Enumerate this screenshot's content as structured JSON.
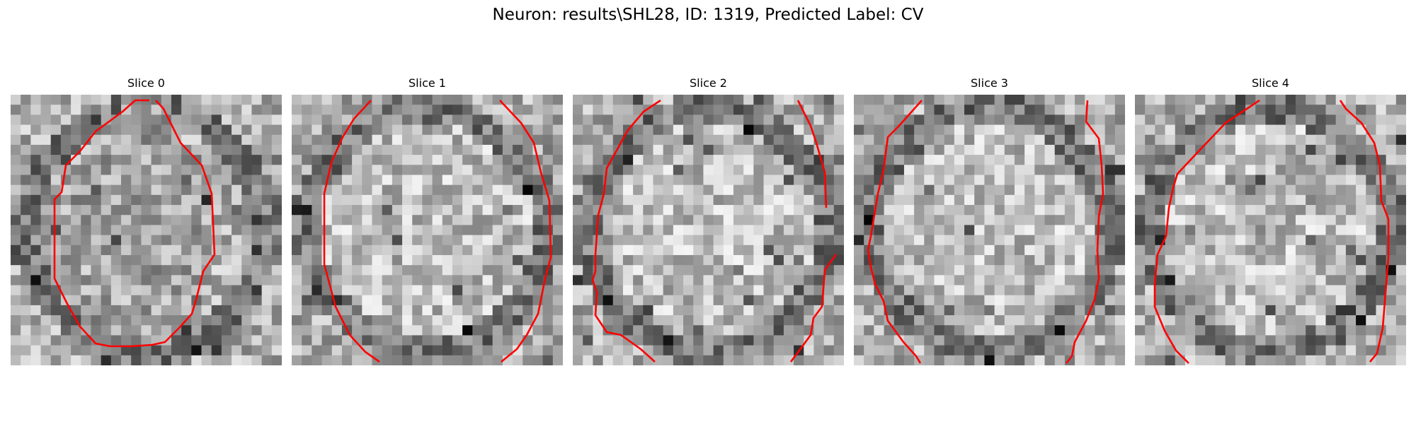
{
  "figure": {
    "title": "Neuron: results\\SHL28, ID: 1319, Predicted Label: CV",
    "contour_color": "#ff0000",
    "colormap": "gray"
  },
  "panels": [
    {
      "title": "Slice 0"
    },
    {
      "title": "Slice 1"
    },
    {
      "title": "Slice 2"
    },
    {
      "title": "Slice 3"
    },
    {
      "title": "Slice 4"
    }
  ]
}
